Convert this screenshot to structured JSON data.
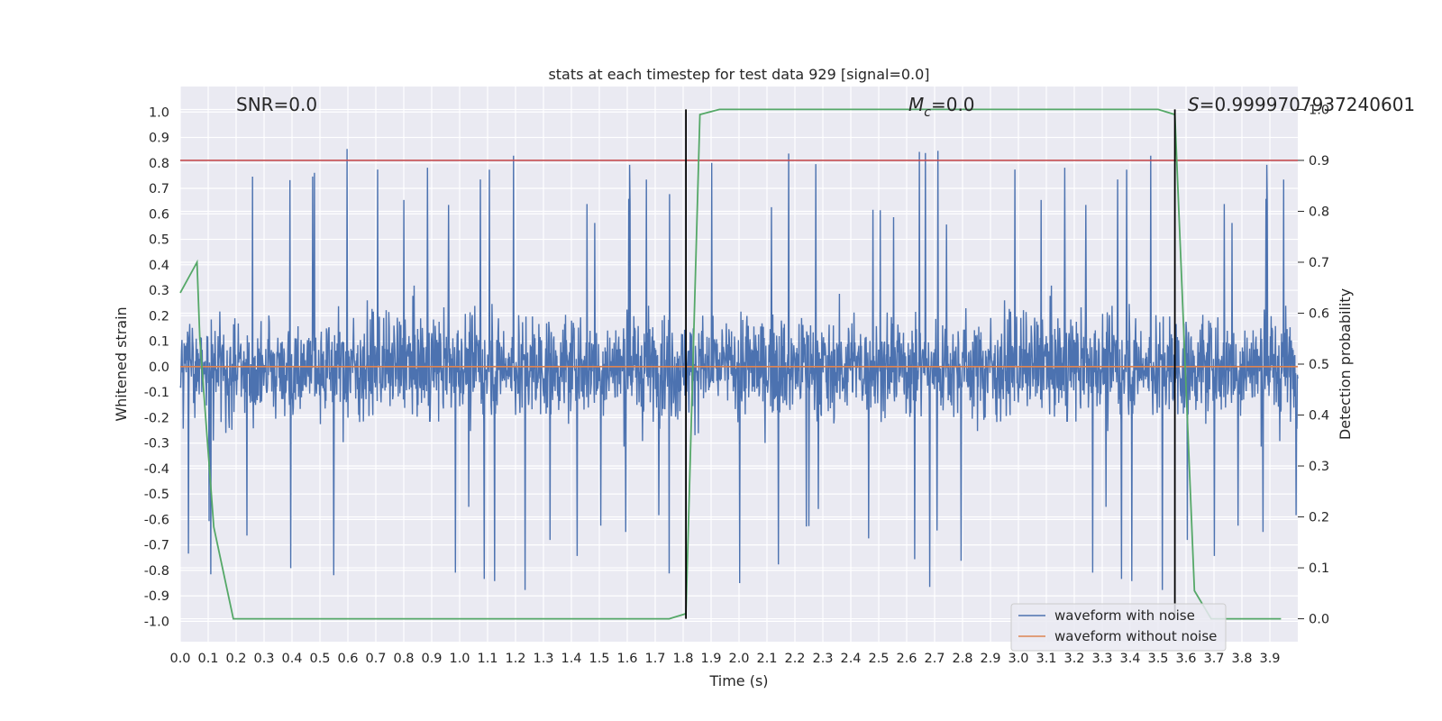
{
  "chart_data": {
    "type": "line",
    "title": "stats at each timestep for test data 929 [signal=0.0]",
    "xlabel": "Time (s)",
    "ylabel_left": "Whitened strain",
    "ylabel_right": "Detection probability",
    "xlim": [
      0.0,
      4.0
    ],
    "ylim_left": [
      -1.08,
      1.1
    ],
    "ylim_right": [
      -0.045,
      1.045
    ],
    "x_ticks": [
      "0.0",
      "0.1",
      "0.2",
      "0.3",
      "0.4",
      "0.5",
      "0.6",
      "0.7",
      "0.8",
      "0.9",
      "1.0",
      "1.1",
      "1.2",
      "1.3",
      "1.4",
      "1.5",
      "1.6",
      "1.7",
      "1.8",
      "1.9",
      "2.0",
      "2.1",
      "2.2",
      "2.3",
      "2.4",
      "2.5",
      "2.6",
      "2.7",
      "2.8",
      "2.9",
      "3.0",
      "3.1",
      "3.2",
      "3.3",
      "3.4",
      "3.5",
      "3.6",
      "3.7",
      "3.8",
      "3.9"
    ],
    "y_ticks_left": [
      "1.0",
      "0.9",
      "0.8",
      "0.7",
      "0.6",
      "0.5",
      "0.4",
      "0.3",
      "0.2",
      "0.1",
      "0.0",
      "-0.1",
      "-0.2",
      "-0.3",
      "-0.4",
      "-0.5",
      "-0.6",
      "-0.7",
      "-0.8",
      "-0.9",
      "-1.0"
    ],
    "y_ticks_right": [
      "0.0",
      "0.1",
      "0.2",
      "0.3",
      "0.4",
      "0.5",
      "0.6",
      "0.7",
      "0.8",
      "0.9",
      "1.0"
    ],
    "grid": true,
    "legend_position": "bottom-right",
    "annotations": {
      "snr": "SNR=0.0",
      "mc_symbol": "M",
      "mc_subscript": "c",
      "mc_value": "=0.0",
      "s_symbol": "S",
      "s_value": "=0.999970793724060​1"
    },
    "series": [
      {
        "name": "waveform with noise",
        "color": "#4c72b0",
        "axis": "left",
        "description": "dense white-noise strain, approx amplitude range -0.98 to 1.0, ~4000 samples"
      },
      {
        "name": "waveform without noise",
        "color": "#dd8452",
        "axis": "left",
        "y_constant": 0.0
      }
    ],
    "detection_probability": {
      "color": "#55a868",
      "axis": "right",
      "x": [
        0.0,
        0.06,
        0.07,
        0.12,
        0.19,
        0.25,
        1.75,
        1.81,
        1.86,
        1.93,
        3.5,
        3.56,
        3.63,
        3.69,
        3.94
      ],
      "y": [
        0.64,
        0.7,
        0.55,
        0.18,
        0.0,
        0.0,
        0.0,
        0.01,
        0.99,
        1.0,
        1.0,
        0.99,
        0.055,
        0.0,
        0.0
      ]
    },
    "threshold_line": {
      "color": "#c44e52",
      "axis": "right",
      "y": 0.9
    },
    "vertical_markers": {
      "color": "#000000",
      "x": [
        1.81,
        3.56
      ],
      "y_range_right": [
        0.0,
        1.0
      ]
    }
  }
}
